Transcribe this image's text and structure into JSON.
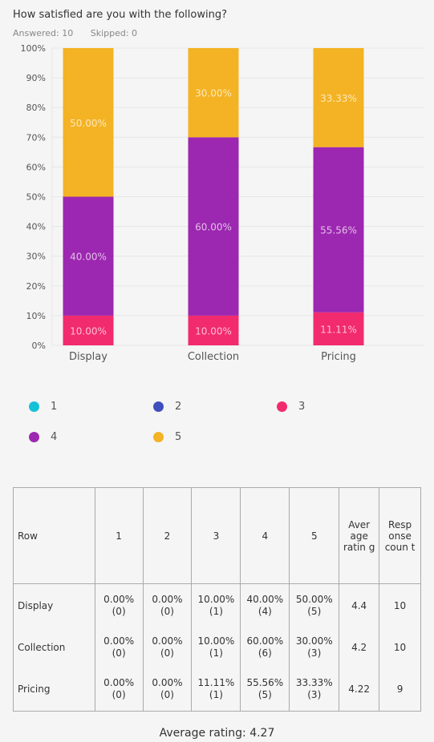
{
  "question": "How satisfied are you with the following?",
  "stats": {
    "answered": "Answered: 10",
    "skipped": "Skipped: 0"
  },
  "colors": {
    "1": "#16c1d8",
    "2": "#3f4fbd",
    "3": "#f22a6e",
    "4": "#9c27b0",
    "5": "#f4b324"
  },
  "chart_data": {
    "type": "bar",
    "stacked": true,
    "categories": [
      "Display",
      "Collection",
      "Pricing"
    ],
    "yticks": [
      "0%",
      "10%",
      "20%",
      "30%",
      "40%",
      "50%",
      "60%",
      "70%",
      "80%",
      "90%",
      "100%"
    ],
    "ylim": [
      0,
      100
    ],
    "grid": true,
    "legend_position": "bottom",
    "series": [
      {
        "name": "1",
        "values": [
          0,
          0,
          0
        ],
        "labels": [
          "",
          "",
          ""
        ]
      },
      {
        "name": "2",
        "values": [
          0,
          0,
          0
        ],
        "labels": [
          "",
          "",
          ""
        ]
      },
      {
        "name": "3",
        "values": [
          10,
          10,
          11.11
        ],
        "labels": [
          "10.00%",
          "10.00%",
          "11.11%"
        ]
      },
      {
        "name": "4",
        "values": [
          40,
          60,
          55.56
        ],
        "labels": [
          "40.00%",
          "60.00%",
          "55.56%"
        ]
      },
      {
        "name": "5",
        "values": [
          50,
          30,
          33.33
        ],
        "labels": [
          "50.00%",
          "30.00%",
          "33.33%"
        ]
      }
    ]
  },
  "table": {
    "headers": [
      "Row",
      "1",
      "2",
      "3",
      "4",
      "5",
      "Aver age ratin g",
      "Resp onse coun t"
    ],
    "rows": [
      {
        "label": "Display",
        "cells": [
          [
            "0.00%",
            "(0)"
          ],
          [
            "0.00%",
            "(0)"
          ],
          [
            "10.00%",
            "(1)"
          ],
          [
            "40.00%",
            "(4)"
          ],
          [
            "50.00%",
            "(5)"
          ]
        ],
        "average": "4.4",
        "count": "10"
      },
      {
        "label": "Collection",
        "cells": [
          [
            "0.00%",
            "(0)"
          ],
          [
            "0.00%",
            "(0)"
          ],
          [
            "10.00%",
            "(1)"
          ],
          [
            "60.00%",
            "(6)"
          ],
          [
            "30.00%",
            "(3)"
          ]
        ],
        "average": "4.2",
        "count": "10"
      },
      {
        "label": "Pricing",
        "cells": [
          [
            "0.00%",
            "(0)"
          ],
          [
            "0.00%",
            "(0)"
          ],
          [
            "11.11%",
            "(1)"
          ],
          [
            "55.56%",
            "(5)"
          ],
          [
            "33.33%",
            "(3)"
          ]
        ],
        "average": "4.22",
        "count": "9"
      }
    ]
  },
  "footer": "Average rating: 4.27"
}
